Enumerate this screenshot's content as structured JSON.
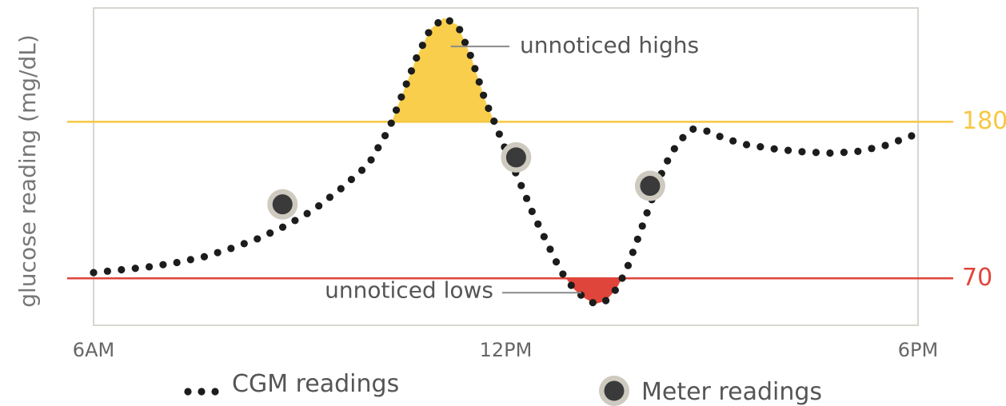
{
  "chart_data": {
    "type": "line",
    "title": "",
    "ylabel": "glucose reading (mg/dL)",
    "xlabel": "",
    "x_range": [
      6,
      18
    ],
    "y_range": [
      37,
      260
    ],
    "x_ticks": [
      {
        "x": 6,
        "label": "6AM"
      },
      {
        "x": 12,
        "label": "12PM"
      },
      {
        "x": 18,
        "label": "6PM"
      }
    ],
    "grid": false,
    "thresholds": [
      {
        "name": "high",
        "value": 180,
        "label": "180",
        "color": "#f5c842"
      },
      {
        "name": "low",
        "value": 70,
        "label": "70",
        "color": "#e0453b"
      }
    ],
    "series": [
      {
        "name": "CGM readings",
        "style": "dotted",
        "color": "#1c1c1c",
        "points": [
          [
            6.0,
            74
          ],
          [
            6.4,
            76
          ],
          [
            6.8,
            78
          ],
          [
            7.2,
            81
          ],
          [
            7.6,
            85
          ],
          [
            8.0,
            91
          ],
          [
            8.4,
            98
          ],
          [
            8.8,
            107
          ],
          [
            9.2,
            118
          ],
          [
            9.6,
            133
          ],
          [
            10.0,
            150
          ],
          [
            10.3,
            175
          ],
          [
            10.5,
            200
          ],
          [
            10.7,
            225
          ],
          [
            10.9,
            245
          ],
          [
            11.1,
            253
          ],
          [
            11.3,
            248
          ],
          [
            11.5,
            225
          ],
          [
            11.7,
            195
          ],
          [
            11.85,
            178
          ],
          [
            12.0,
            160
          ],
          [
            12.2,
            138
          ],
          [
            12.4,
            115
          ],
          [
            12.6,
            95
          ],
          [
            12.8,
            75
          ],
          [
            13.0,
            62
          ],
          [
            13.15,
            56
          ],
          [
            13.3,
            52
          ],
          [
            13.45,
            54
          ],
          [
            13.6,
            62
          ],
          [
            13.75,
            75
          ],
          [
            13.9,
            95
          ],
          [
            14.1,
            122
          ],
          [
            14.3,
            148
          ],
          [
            14.5,
            165
          ],
          [
            14.7,
            175
          ],
          [
            14.9,
            174
          ],
          [
            15.2,
            168
          ],
          [
            15.5,
            164
          ],
          [
            15.9,
            161
          ],
          [
            16.3,
            159
          ],
          [
            16.7,
            158
          ],
          [
            17.1,
            159
          ],
          [
            17.5,
            163
          ],
          [
            17.9,
            170
          ],
          [
            18.0,
            172
          ]
        ]
      },
      {
        "name": "Meter readings",
        "style": "markers",
        "color": "#3a3a3a",
        "points": [
          [
            8.75,
            122
          ],
          [
            12.15,
            155
          ],
          [
            14.1,
            135
          ]
        ]
      }
    ],
    "annotations": [
      {
        "text": "unnoticed highs",
        "x": 11.2,
        "y": 233
      },
      {
        "text": "unnoticed lows",
        "x": 13.1,
        "y": 61
      }
    ],
    "legend": {
      "placement": "bottom",
      "items": [
        {
          "label": "CGM readings",
          "marker": "dots"
        },
        {
          "label": "Meter readings",
          "marker": "circle"
        }
      ]
    }
  }
}
